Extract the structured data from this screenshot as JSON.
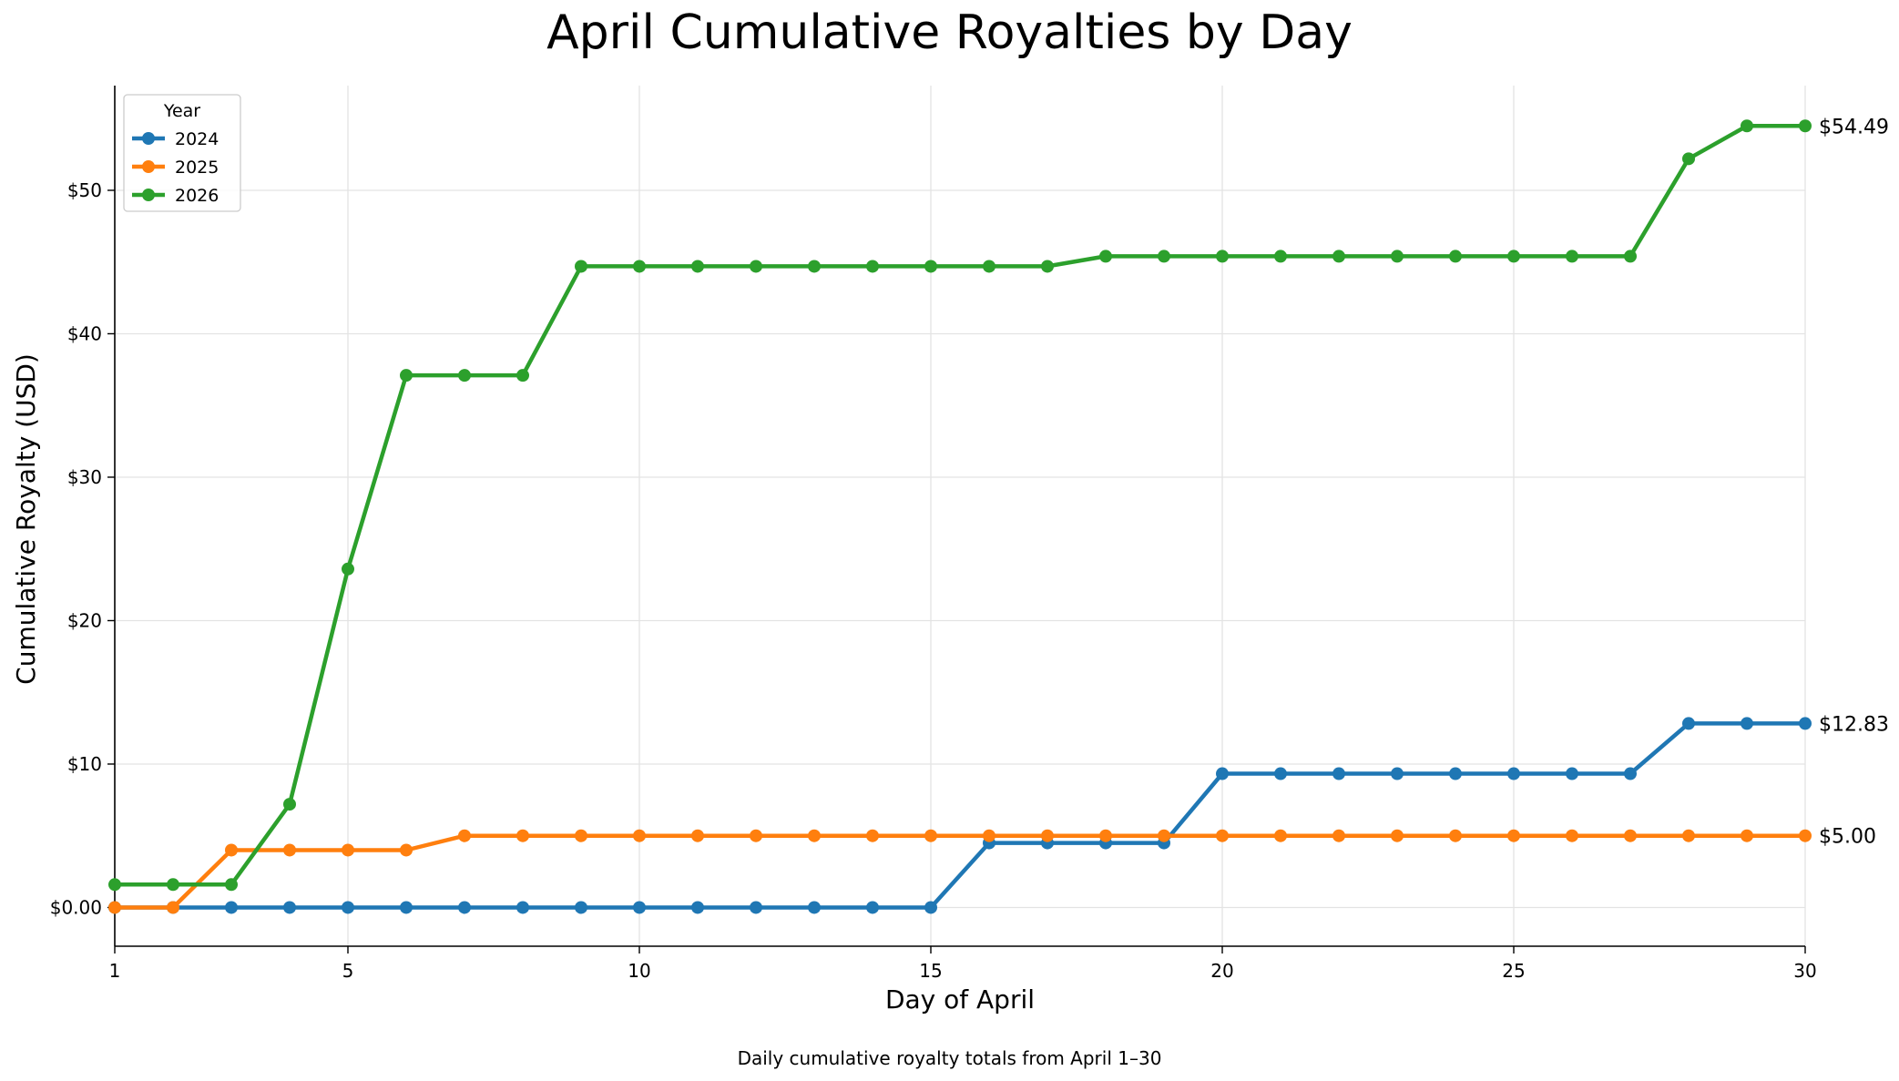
{
  "chart_data": {
    "type": "line",
    "title": "April Cumulative Royalties by Day",
    "subtitle": "Daily cumulative royalty totals from April 1–30",
    "xlabel": "Day of April",
    "ylabel": "Cumulative Royalty (USD)",
    "xlim": [
      1,
      30
    ],
    "ylim": [
      -2.7,
      57.3
    ],
    "x_ticks": [
      1,
      5,
      10,
      15,
      20,
      25,
      30
    ],
    "x_tick_labels": [
      "1",
      "5",
      "10",
      "15",
      "20",
      "25",
      "30"
    ],
    "y_ticks": [
      0,
      10,
      20,
      30,
      40,
      50
    ],
    "y_tick_labels": [
      "$0.00",
      "$10",
      "$20",
      "$30",
      "$40",
      "$50"
    ],
    "grid": true,
    "legend": {
      "title": "Year",
      "position": "top-left"
    },
    "x": [
      1,
      2,
      3,
      4,
      5,
      6,
      7,
      8,
      9,
      10,
      11,
      12,
      13,
      14,
      15,
      16,
      17,
      18,
      19,
      20,
      21,
      22,
      23,
      24,
      25,
      26,
      27,
      28,
      29,
      30
    ],
    "series": [
      {
        "name": "2024",
        "color": "#1f77b4",
        "values": [
          0,
          0,
          0,
          0,
          0,
          0,
          0,
          0,
          0,
          0,
          0,
          0,
          0,
          0,
          0,
          4.5,
          4.5,
          4.5,
          4.5,
          9.33,
          9.33,
          9.33,
          9.33,
          9.33,
          9.33,
          9.33,
          9.33,
          12.83,
          12.83,
          12.83
        ],
        "end_label": "$12.83"
      },
      {
        "name": "2025",
        "color": "#ff7f0e",
        "values": [
          0,
          0,
          4,
          4,
          4,
          4,
          5,
          5,
          5,
          5,
          5,
          5,
          5,
          5,
          5,
          5,
          5,
          5,
          5,
          5,
          5,
          5,
          5,
          5,
          5,
          5,
          5,
          5,
          5,
          5
        ],
        "end_label": "$5.00"
      },
      {
        "name": "2026",
        "color": "#2ca02c",
        "values": [
          1.6,
          1.6,
          1.6,
          7.2,
          23.6,
          37.1,
          37.1,
          37.1,
          44.7,
          44.7,
          44.7,
          44.7,
          44.7,
          44.7,
          44.7,
          44.7,
          44.7,
          45.4,
          45.4,
          45.4,
          45.4,
          45.4,
          45.4,
          45.4,
          45.4,
          45.4,
          45.4,
          52.2,
          54.49,
          54.49
        ],
        "end_label": "$54.49"
      }
    ]
  }
}
